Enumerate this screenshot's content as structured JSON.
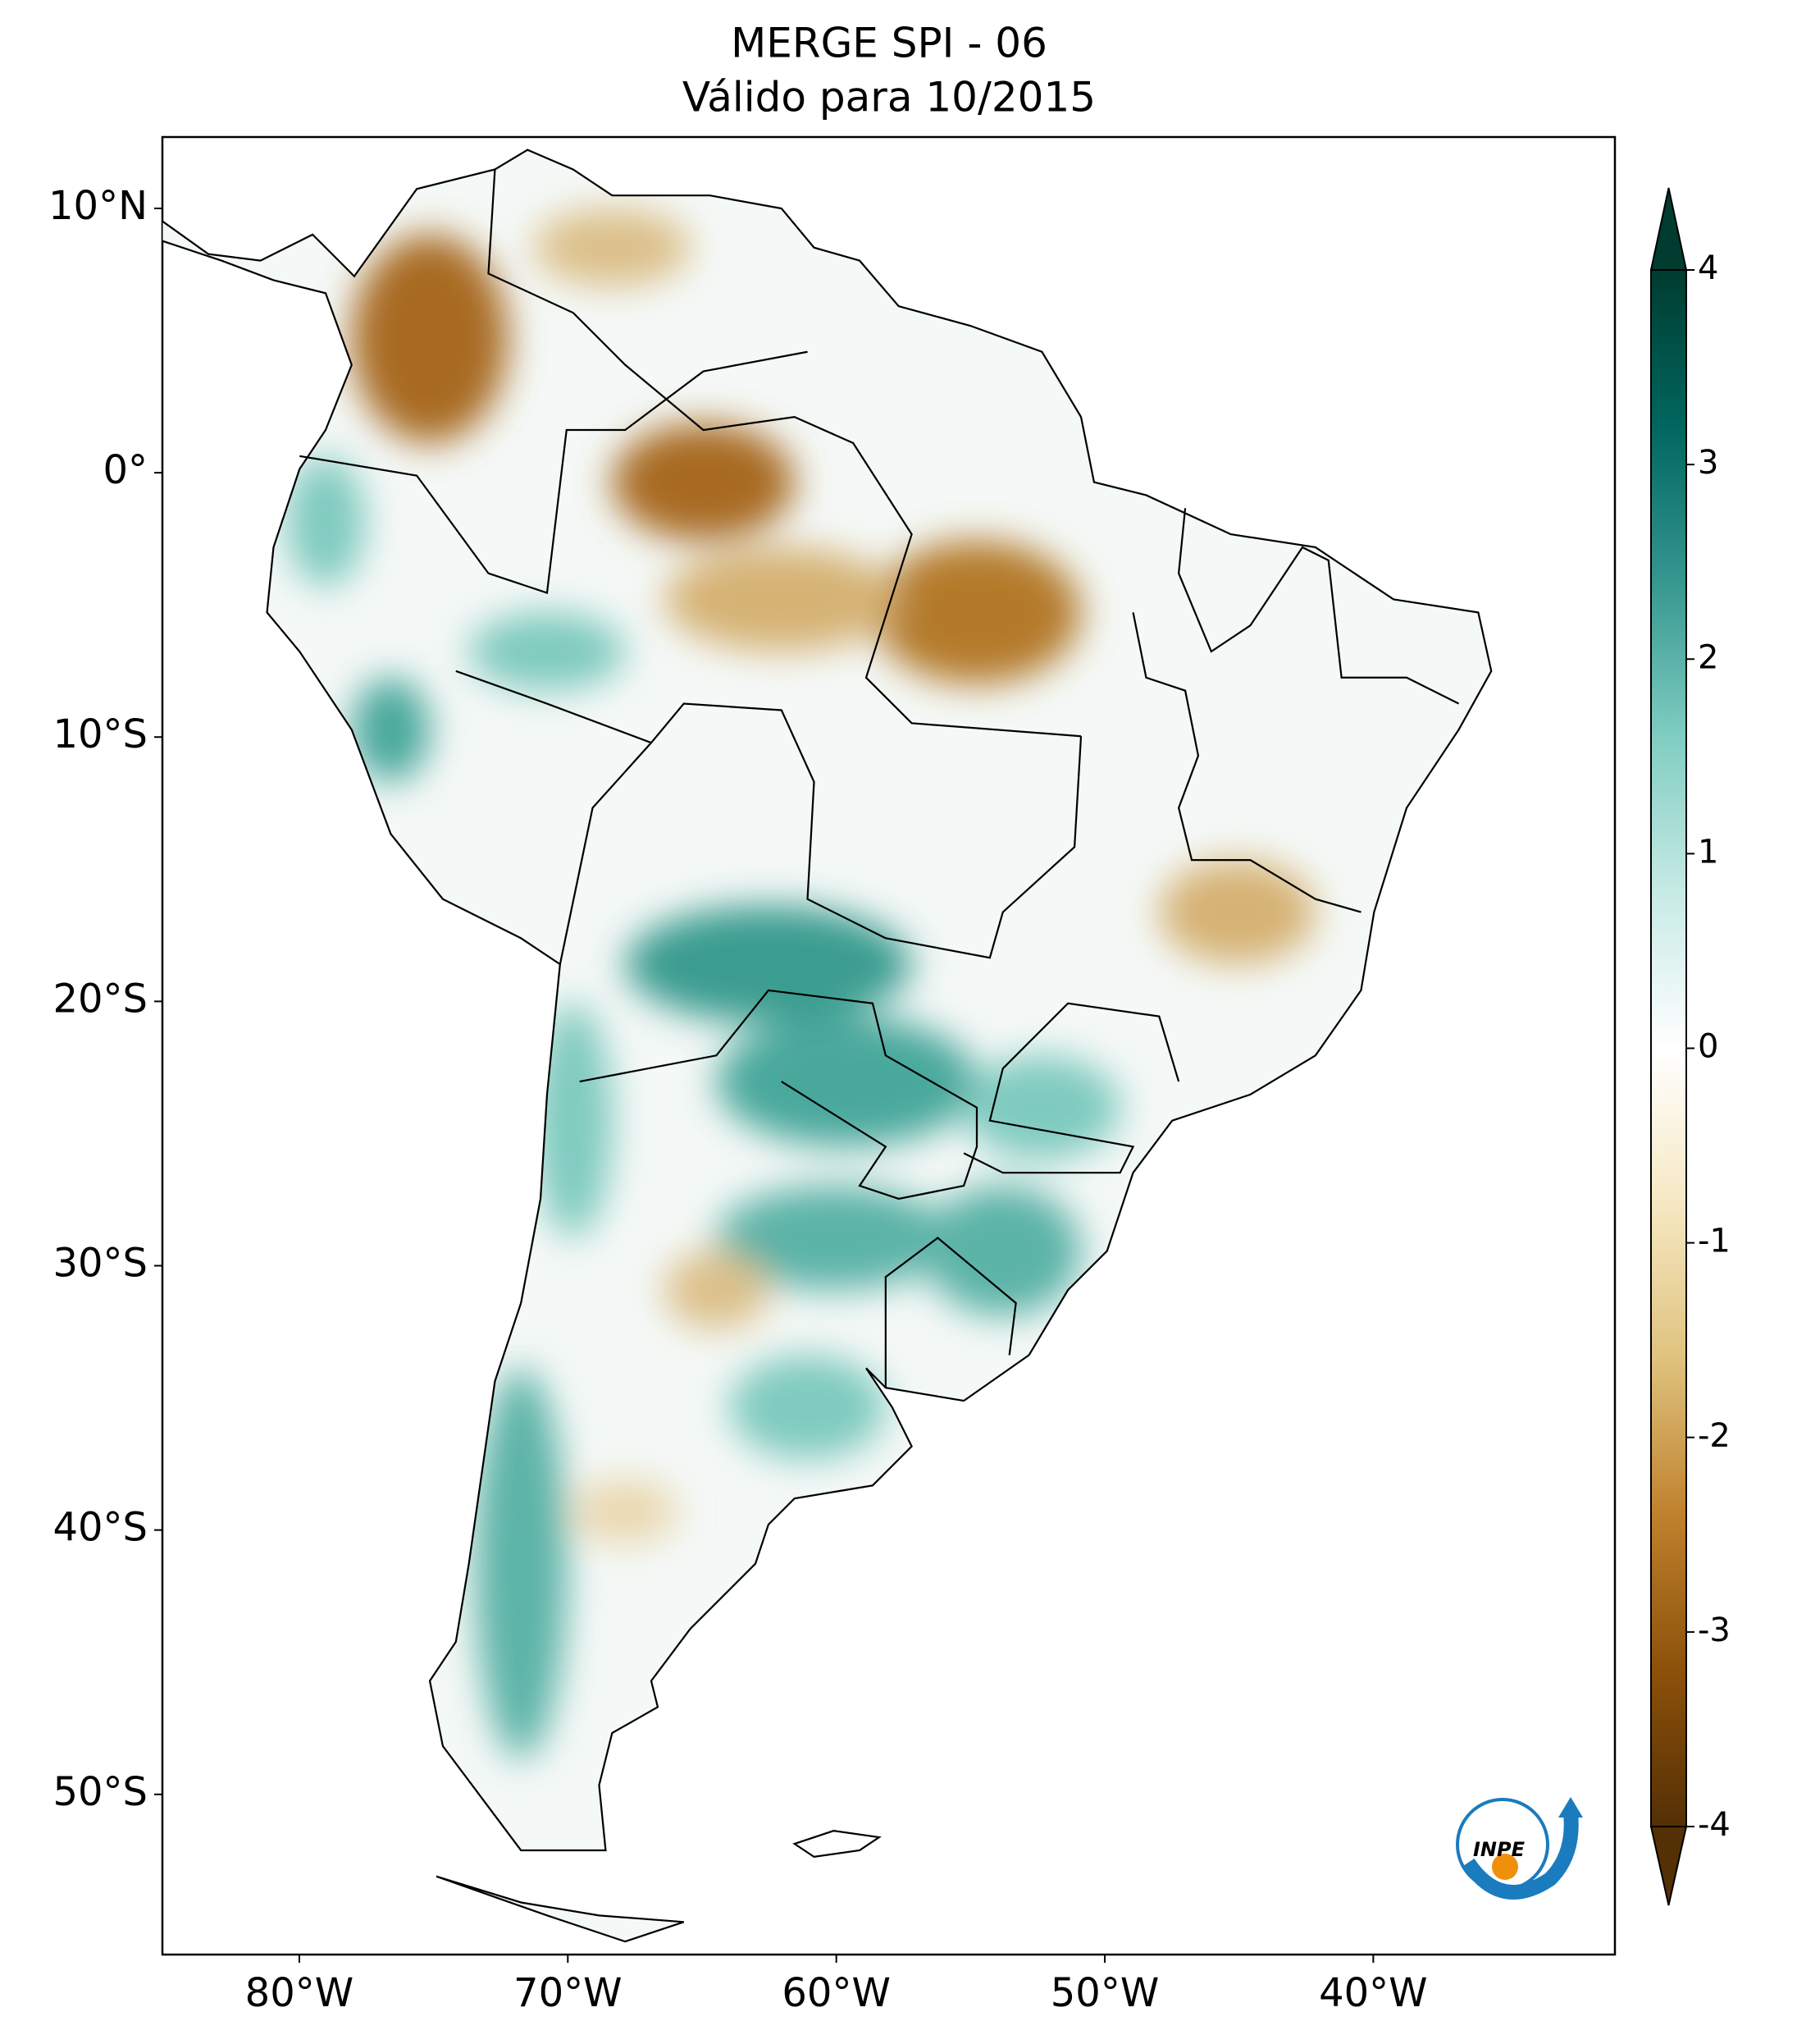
{
  "title": "MERGE   SPI - 06",
  "subtitle": "Válido para 10/2015",
  "map": {
    "xlim": [
      -85.1,
      -31.0
    ],
    "ylim": [
      -56.06,
      12.7
    ],
    "xticks": [
      {
        "value": -80,
        "label": "80°W"
      },
      {
        "value": -70,
        "label": "70°W"
      },
      {
        "value": -60,
        "label": "60°W"
      },
      {
        "value": -50,
        "label": "50°W"
      },
      {
        "value": -40,
        "label": "40°W"
      }
    ],
    "yticks": [
      {
        "value": 10,
        "label": "10°N"
      },
      {
        "value": 0,
        "label": "0°"
      },
      {
        "value": -10,
        "label": "10°S"
      },
      {
        "value": -20,
        "label": "20°S"
      },
      {
        "value": -30,
        "label": "30°S"
      },
      {
        "value": -40,
        "label": "40°S"
      },
      {
        "value": -50,
        "label": "50°S"
      }
    ]
  },
  "colorbar": {
    "lim": [
      -4,
      4
    ],
    "ticks": [
      4,
      3,
      2,
      1,
      0,
      -1,
      -2,
      -3,
      -4
    ],
    "colors": [
      "#543005",
      "#8c510a",
      "#bf812d",
      "#dfc27d",
      "#f6e8c3",
      "#ffffff",
      "#c7eae5",
      "#80cdc1",
      "#35978f",
      "#01665e",
      "#003c30"
    ]
  },
  "logo": "INPE"
}
